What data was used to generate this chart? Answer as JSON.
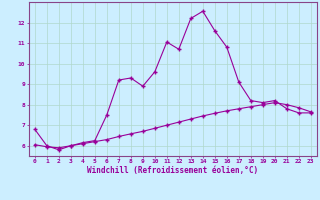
{
  "title": "",
  "xlabel": "Windchill (Refroidissement éolien,°C)",
  "ylabel": "",
  "background_color": "#cceeff",
  "grid_color": "#b0d8cc",
  "line_color": "#990099",
  "spine_color": "#884488",
  "xlim": [
    -0.5,
    23.5
  ],
  "ylim": [
    5.5,
    13.0
  ],
  "x_ticks": [
    0,
    1,
    2,
    3,
    4,
    5,
    6,
    7,
    8,
    9,
    10,
    11,
    12,
    13,
    14,
    15,
    16,
    17,
    18,
    19,
    20,
    21,
    22,
    23
  ],
  "y_ticks": [
    6,
    7,
    8,
    9,
    10,
    11,
    12
  ],
  "series1_x": [
    0,
    1,
    2,
    3,
    4,
    5,
    6,
    7,
    8,
    9,
    10,
    11,
    12,
    13,
    14,
    15,
    16,
    17,
    18,
    19,
    20,
    21,
    22,
    23
  ],
  "series1_y": [
    6.8,
    6.0,
    5.8,
    6.0,
    6.15,
    6.25,
    7.5,
    9.2,
    9.3,
    8.9,
    9.6,
    11.05,
    10.7,
    12.2,
    12.55,
    11.6,
    10.8,
    9.1,
    8.2,
    8.1,
    8.2,
    7.8,
    7.6,
    7.6
  ],
  "series2_x": [
    0,
    1,
    2,
    3,
    4,
    5,
    6,
    7,
    8,
    9,
    10,
    11,
    12,
    13,
    14,
    15,
    16,
    17,
    18,
    19,
    20,
    21,
    22,
    23
  ],
  "series2_y": [
    6.05,
    5.95,
    5.9,
    6.0,
    6.1,
    6.2,
    6.3,
    6.45,
    6.58,
    6.7,
    6.85,
    7.0,
    7.15,
    7.3,
    7.45,
    7.58,
    7.7,
    7.8,
    7.9,
    8.0,
    8.1,
    8.0,
    7.85,
    7.65
  ]
}
